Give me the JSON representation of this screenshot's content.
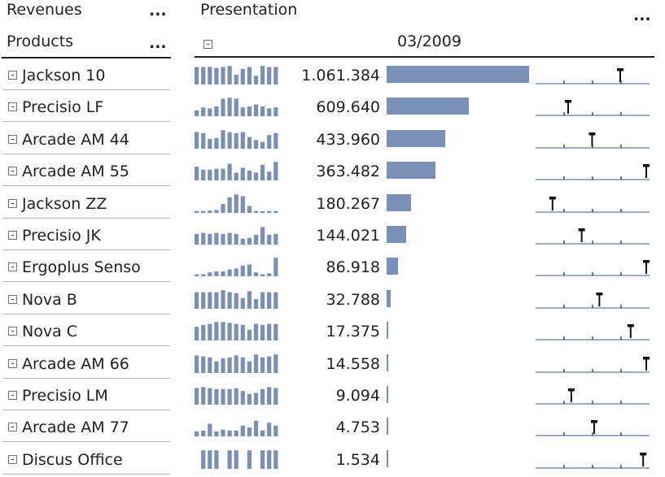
{
  "header": {
    "revenues_label": "Revenues",
    "products_label": "Products",
    "presentation_label": "Presentation",
    "period_label": "03/2009",
    "more_glyph": "..."
  },
  "colors": {
    "bar": "#7a8fb7",
    "marker": "#111111",
    "baseline": "#7a8fb7"
  },
  "max_value": 1061384,
  "rows": [
    {
      "name": "Jackson 10",
      "value_text": "1.061.384",
      "value": 1061384,
      "spark": [
        0.9,
        0.9,
        0.9,
        0.85,
        0.9,
        0.95,
        0.5,
        0.8,
        0.9,
        0.45,
        0.95,
        0.9,
        0.9
      ],
      "marker": 0.75
    },
    {
      "name": "Precisio LF",
      "value_text": "609.640",
      "value": 609640,
      "spark": [
        0.3,
        0.45,
        0.4,
        0.5,
        0.9,
        0.95,
        0.9,
        0.45,
        0.5,
        0.6,
        0.5,
        0.4,
        0.45
      ],
      "marker": 0.25
    },
    {
      "name": "Arcade AM 44",
      "value_text": "433.960",
      "value": 433960,
      "spark": [
        0.85,
        0.8,
        0.5,
        0.55,
        0.95,
        0.85,
        0.8,
        0.85,
        0.6,
        0.45,
        0.35,
        0.7,
        0.8
      ],
      "marker": 0.48
    },
    {
      "name": "Arcade AM 55",
      "value_text": "363.482",
      "value": 363482,
      "spark": [
        0.7,
        0.55,
        0.55,
        0.6,
        0.6,
        0.85,
        0.4,
        0.65,
        0.5,
        0.4,
        0.8,
        0.45,
        0.95
      ],
      "marker": 1.0
    },
    {
      "name": "Jackson ZZ",
      "value_text": "180.267",
      "value": 180267,
      "spark": [
        0.1,
        0.1,
        0.12,
        0.15,
        0.45,
        0.8,
        0.95,
        0.85,
        0.35,
        0.1,
        0.08,
        0.1,
        0.1
      ],
      "marker": 0.1
    },
    {
      "name": "Precisio JK",
      "value_text": "144.021",
      "value": 144021,
      "spark": [
        0.55,
        0.6,
        0.55,
        0.6,
        0.55,
        0.6,
        0.55,
        0.3,
        0.35,
        0.5,
        0.9,
        0.5,
        0.55
      ],
      "marker": 0.38
    },
    {
      "name": "Ergoplus Senso",
      "value_text": "86.918",
      "value": 86918,
      "spark": [
        0.1,
        0.1,
        0.2,
        0.25,
        0.25,
        0.35,
        0.4,
        0.55,
        0.6,
        0.2,
        0.1,
        0.15,
        0.95
      ],
      "marker": 1.0
    },
    {
      "name": "Nova B",
      "value_text": "32.788",
      "value": 32788,
      "spark": [
        0.85,
        0.85,
        0.85,
        0.85,
        0.95,
        0.85,
        0.8,
        0.55,
        0.9,
        0.5,
        0.85,
        0.85,
        0.85
      ],
      "marker": 0.55
    },
    {
      "name": "Nova C",
      "value_text": "17.375",
      "value": 17375,
      "spark": [
        0.7,
        0.8,
        0.85,
        0.95,
        0.95,
        0.9,
        0.85,
        0.8,
        0.55,
        0.85,
        0.8,
        0.85,
        0.85
      ],
      "marker": 0.85
    },
    {
      "name": "Arcade AM 66",
      "value_text": "14.558",
      "value": 14558,
      "spark": [
        0.9,
        0.85,
        0.8,
        0.6,
        0.75,
        0.8,
        0.9,
        0.8,
        0.6,
        0.95,
        0.8,
        0.85,
        0.95
      ],
      "marker": 1.0
    },
    {
      "name": "Precisio LM",
      "value_text": "9.094",
      "value": 9094,
      "spark": [
        0.85,
        0.9,
        0.85,
        0.8,
        0.8,
        0.8,
        0.85,
        0.7,
        0.55,
        0.6,
        0.8,
        0.9,
        0.85
      ],
      "marker": 0.28
    },
    {
      "name": "Arcade AM 77",
      "value_text": "4.753",
      "value": 4753,
      "spark": [
        0.25,
        0.3,
        0.65,
        0.25,
        0.35,
        0.3,
        0.3,
        0.55,
        0.45,
        0.8,
        0.3,
        0.7,
        0.55
      ],
      "marker": 0.5
    },
    {
      "name": "Discus Office",
      "value_text": "1.534",
      "value": 1534,
      "spark": [
        0,
        0.95,
        0.95,
        0.95,
        0,
        0.95,
        0.95,
        0,
        0.95,
        0,
        0.95,
        0.95,
        0.95
      ],
      "marker": 0.97
    }
  ]
}
